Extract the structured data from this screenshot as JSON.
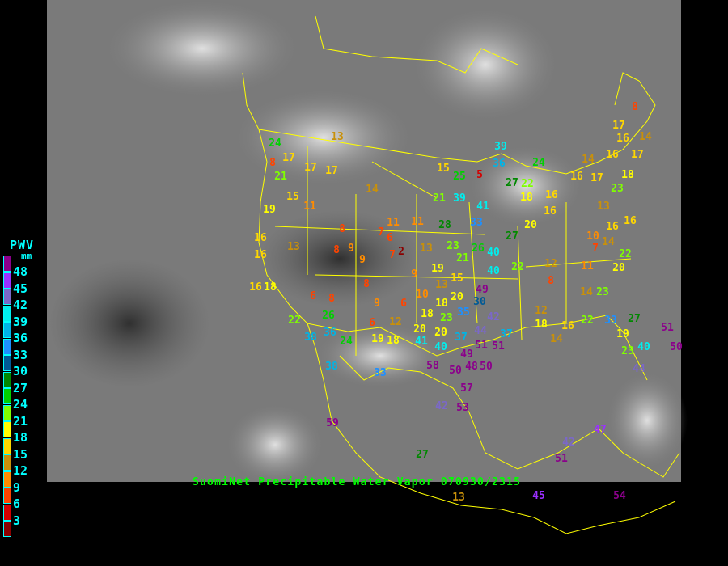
{
  "title": "SuomiNet Precipitable Water Vapor 070930/2315",
  "legend": {
    "title": "PWV",
    "unit": "mm",
    "ticks": [
      "48",
      "45",
      "42",
      "39",
      "36",
      "33",
      "30",
      "27",
      "24",
      "21",
      "18",
      "15",
      "12",
      "9",
      "6",
      "3"
    ],
    "colors": [
      "#8b008b",
      "#9b30ff",
      "#7b68c8",
      "#00eeee",
      "#00b4e6",
      "#1e90ff",
      "#005a96",
      "#008800",
      "#00d000",
      "#80ff00",
      "#ffff00",
      "#ffd700",
      "#c8900a",
      "#ff8c00",
      "#ff4400",
      "#d40000",
      "#8b0000"
    ]
  },
  "map": {
    "background": "satellite-water-vapor-imagery",
    "border_color": "#ffff00"
  },
  "stations": [
    24,
    8,
    21,
    17,
    17,
    17,
    13,
    15,
    11,
    19,
    16,
    16,
    13,
    14,
    8,
    8,
    9,
    9,
    7,
    6,
    7,
    2,
    8,
    9,
    10,
    16,
    18,
    6,
    8,
    9,
    6,
    6,
    18,
    12,
    26,
    22,
    38,
    36,
    24,
    19,
    18,
    33,
    38,
    15,
    25,
    5,
    39,
    36,
    27,
    22,
    21,
    39,
    11,
    11,
    28,
    33,
    41,
    13,
    23,
    26,
    40,
    21,
    19,
    15,
    13,
    18,
    20,
    23,
    20,
    20,
    40,
    37,
    41,
    35,
    30,
    49,
    40,
    42,
    44,
    51,
    49,
    51,
    50,
    50,
    58,
    48,
    57,
    53,
    42,
    59,
    27,
    27,
    22,
    20,
    16,
    37,
    12,
    18,
    12,
    8,
    11,
    7,
    20,
    22,
    14,
    23,
    10,
    14,
    14,
    17,
    16,
    16,
    17,
    16,
    14,
    8,
    17,
    18,
    23,
    13,
    16,
    16,
    24,
    18,
    16,
    33,
    19,
    27,
    23,
    40,
    51,
    50,
    44,
    47,
    42,
    51,
    45,
    54,
    13,
    16,
    22,
    14
  ]
}
